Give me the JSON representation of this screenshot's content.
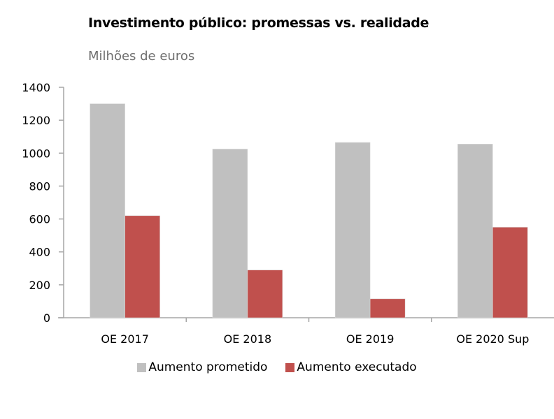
{
  "chart_data": {
    "type": "bar",
    "title": "Investimento público: promessas vs. realidade",
    "subtitle": "Milhões de euros",
    "xlabel": "",
    "ylabel": "",
    "categories": [
      "OE 2017",
      "OE 2018",
      "OE 2019",
      "OE 2020 Sup"
    ],
    "series": [
      {
        "name": "Aumento prometido",
        "color": "#c0c0c0",
        "values": [
          1300,
          1025,
          1065,
          1055
        ]
      },
      {
        "name": "Aumento executado",
        "color": "#c0504d",
        "values": [
          620,
          290,
          115,
          550
        ]
      }
    ],
    "ylim": [
      0,
      1400
    ],
    "yticks": [
      "0",
      "200",
      "400",
      "600",
      "800",
      "1000",
      "1200",
      "1400"
    ],
    "grid": false,
    "legend": "bottom"
  }
}
